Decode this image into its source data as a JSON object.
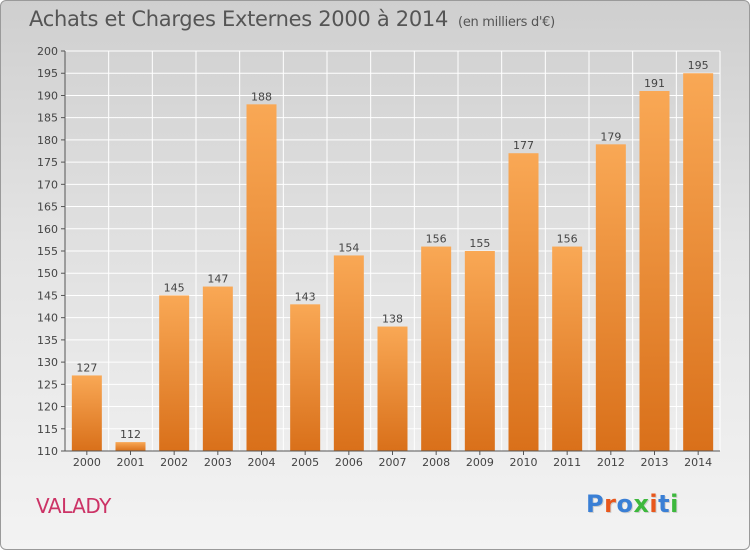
{
  "header": {
    "title": "Achats et Charges Externes 2000 à 2014",
    "unit": "(en milliers d'€)"
  },
  "footer": {
    "commune": "VALADY",
    "brand": "Proxiti",
    "brand_letter_colors": [
      "#3a7fd5",
      "#e8571c",
      "#3a7fd5",
      "#3db83d",
      "#e8571c",
      "#3a7fd5",
      "#3db83d"
    ]
  },
  "colors": {
    "bar_light": "#f9a855",
    "bar_dark": "#d9701a",
    "axis": "#555555",
    "grid": "#ffffff"
  },
  "chart_data": {
    "type": "bar",
    "categories": [
      "2000",
      "2001",
      "2002",
      "2003",
      "2004",
      "2005",
      "2006",
      "2007",
      "2008",
      "2009",
      "2010",
      "2011",
      "2012",
      "2013",
      "2014"
    ],
    "values": [
      127,
      112,
      145,
      147,
      188,
      143,
      154,
      138,
      156,
      155,
      177,
      156,
      179,
      191,
      195
    ],
    "ylim": [
      110,
      200
    ],
    "yticks": [
      110,
      115,
      120,
      125,
      130,
      135,
      140,
      145,
      150,
      155,
      160,
      165,
      170,
      175,
      180,
      185,
      190,
      195,
      200
    ],
    "grid": true
  }
}
